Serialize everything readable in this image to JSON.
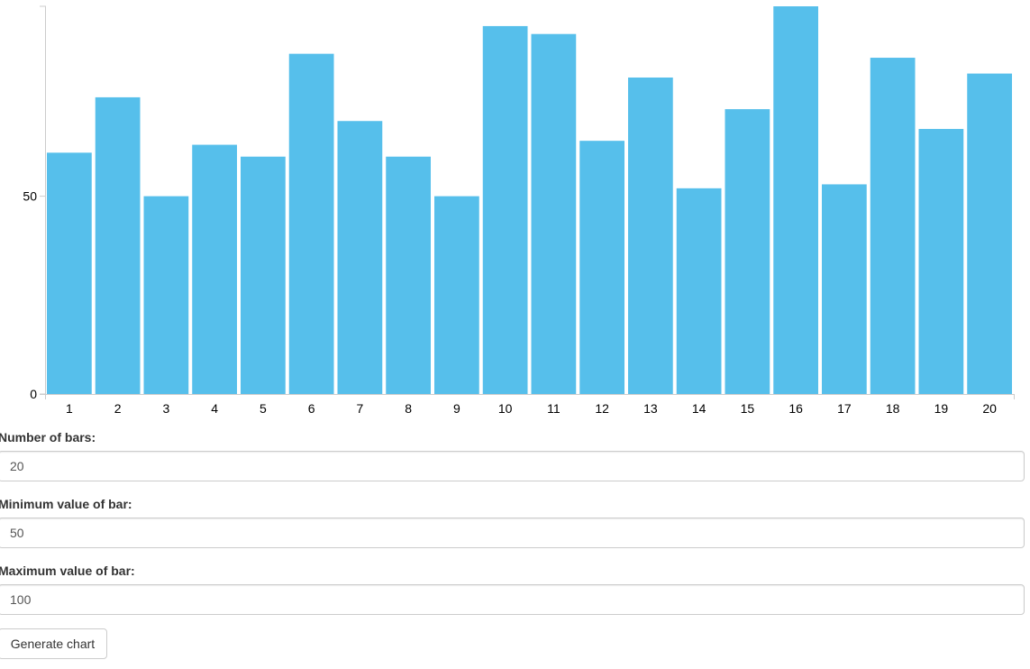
{
  "chart_data": {
    "type": "bar",
    "categories": [
      "1",
      "2",
      "3",
      "4",
      "5",
      "6",
      "7",
      "8",
      "9",
      "10",
      "11",
      "12",
      "13",
      "14",
      "15",
      "16",
      "17",
      "18",
      "19",
      "20"
    ],
    "values": [
      61,
      75,
      50,
      63,
      60,
      86,
      69,
      60,
      50,
      93,
      91,
      64,
      80,
      52,
      72,
      98,
      53,
      85,
      67,
      81
    ],
    "ylim": [
      0,
      98
    ],
    "yticks": [
      0,
      50
    ],
    "grid": false,
    "bar_color": "#56bfeb"
  },
  "form": {
    "bars_label": "Number of bars:",
    "bars_value": "20",
    "min_label": "Minimum value of bar:",
    "min_value": "50",
    "max_label": "Maximum value of bar:",
    "max_value": "100",
    "generate_label": "Generate chart"
  }
}
